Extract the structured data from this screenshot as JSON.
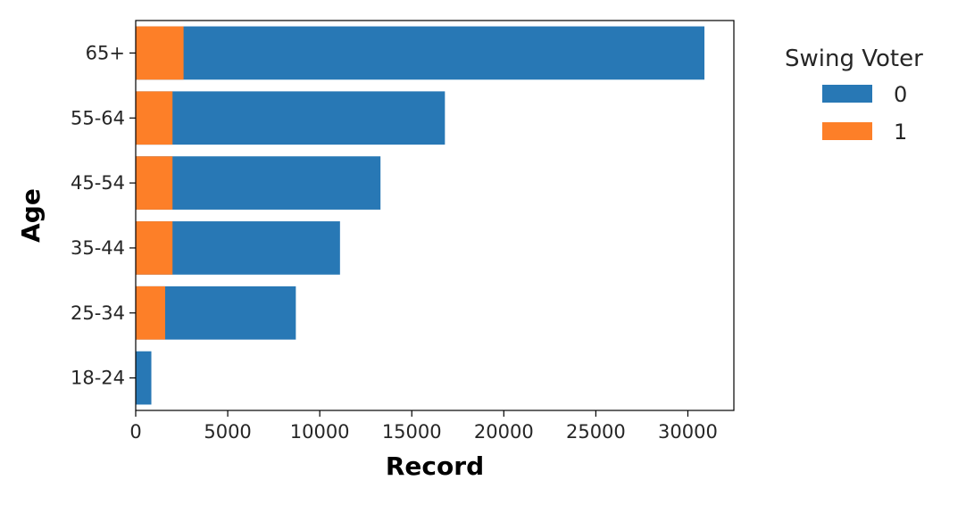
{
  "chart_data": {
    "type": "bar",
    "orientation": "horizontal",
    "stacking": "overlay",
    "categories": [
      "18-24",
      "25-34",
      "35-44",
      "45-54",
      "55-64",
      "65+"
    ],
    "series": [
      {
        "name": "0",
        "color": "#2878b5",
        "values": [
          850,
          8700,
          11100,
          13300,
          16800,
          30900
        ]
      },
      {
        "name": "1",
        "color": "#fd7f28",
        "values": [
          0,
          1600,
          2000,
          2000,
          2000,
          2600
        ]
      }
    ],
    "xlabel": "Record",
    "ylabel": "Age",
    "xlim": [
      0,
      32500
    ],
    "xticks": [
      "0",
      "5000",
      "10000",
      "15000",
      "20000",
      "25000",
      "30000"
    ],
    "grid": false,
    "legend": {
      "title": "Swing Voter",
      "placement": "outside-right"
    }
  }
}
